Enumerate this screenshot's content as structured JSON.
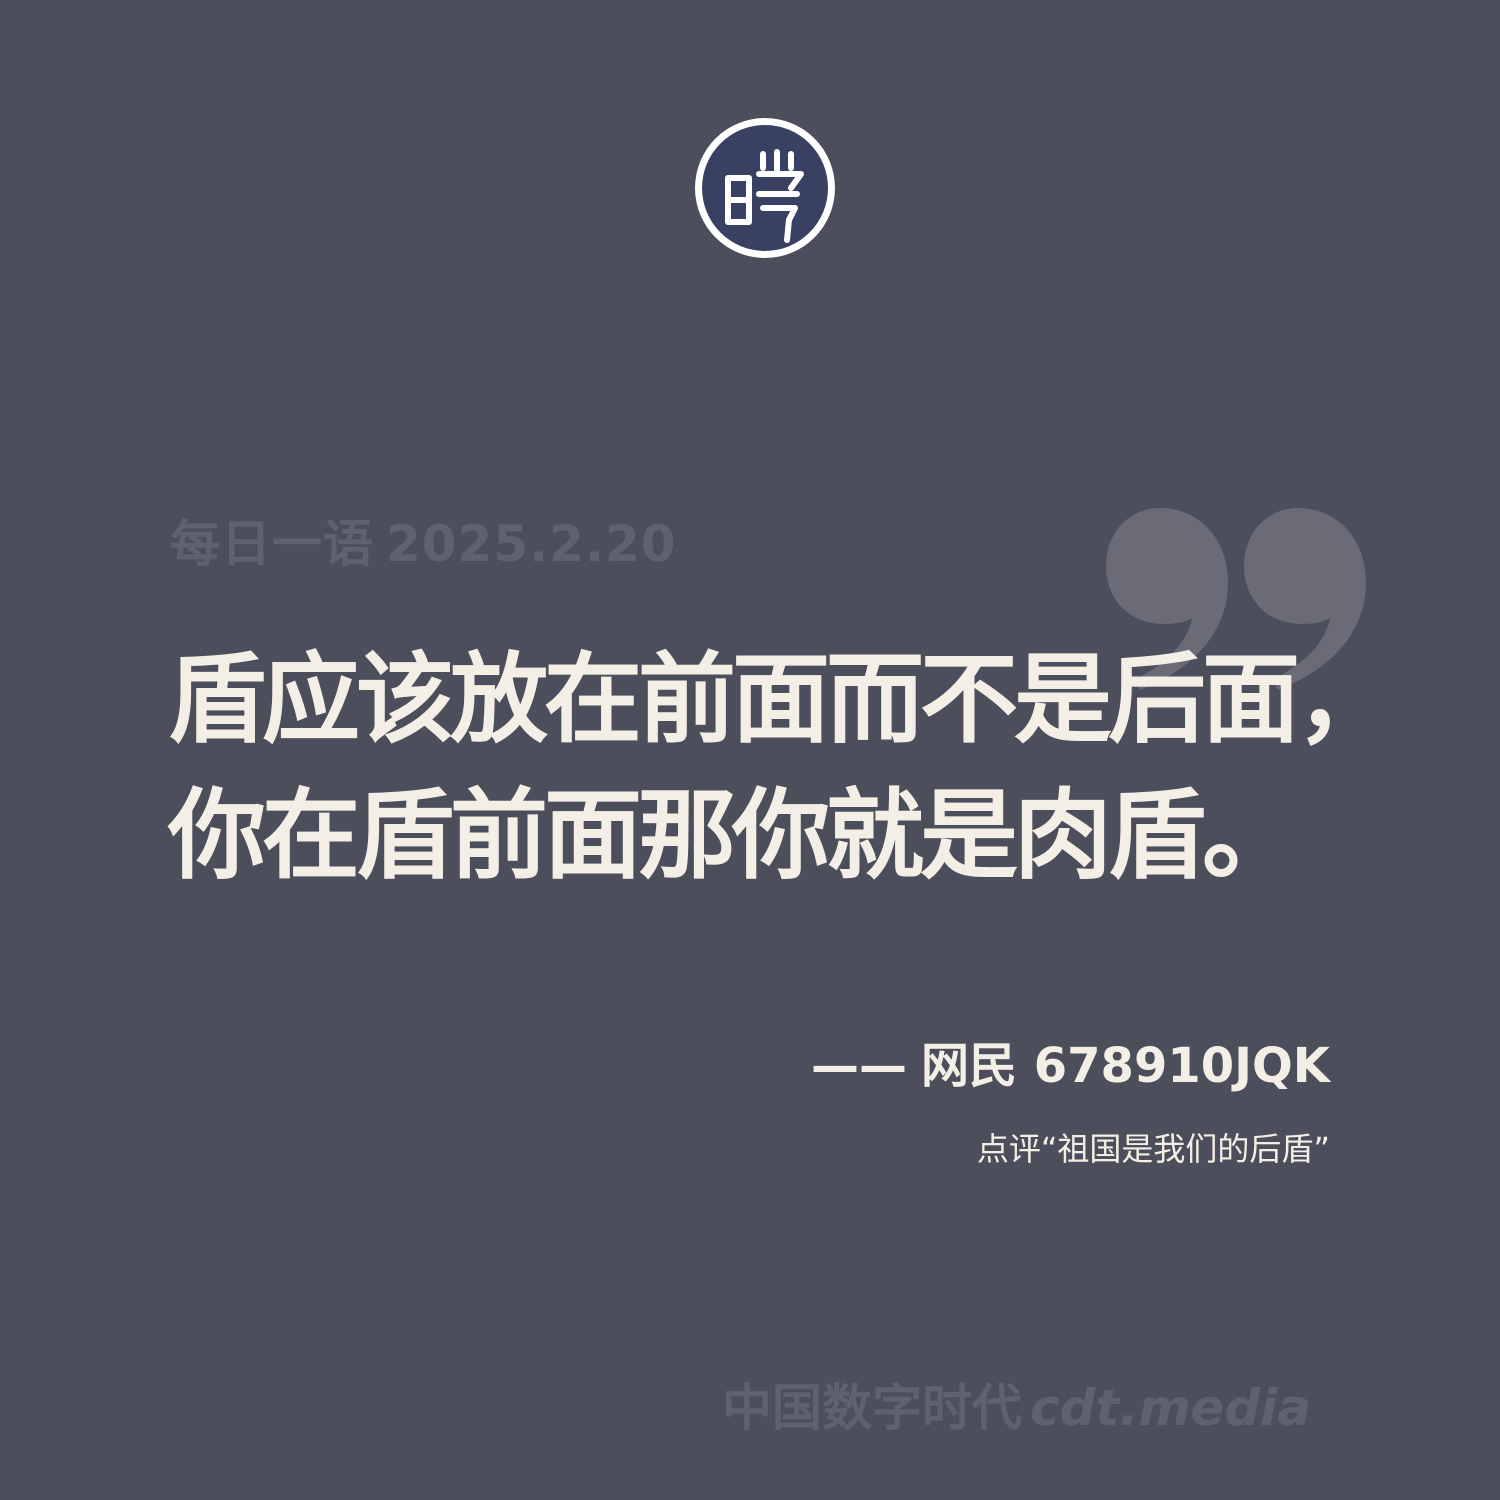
{
  "logo": {
    "icon": "seal-logo-icon",
    "glyph": "暾"
  },
  "header": {
    "label": "每日一语",
    "date": "2025.2.20"
  },
  "quote": {
    "line1": "盾应该放在前面而不是后面，",
    "line2": "你在盾前面那你就是肉盾。"
  },
  "attribution": {
    "dash": "——",
    "author": "网民 678910JQK"
  },
  "comment": "点评“祖国是我们的后盾”",
  "footer": {
    "brand": "中国数字时代",
    "domain": "cdt.media"
  },
  "colors": {
    "background": "#4c4e5b",
    "text": "#f4efe6",
    "muted": "#5f6170",
    "quote_mark": "#6a6b77",
    "logo_fill": "#394163"
  }
}
